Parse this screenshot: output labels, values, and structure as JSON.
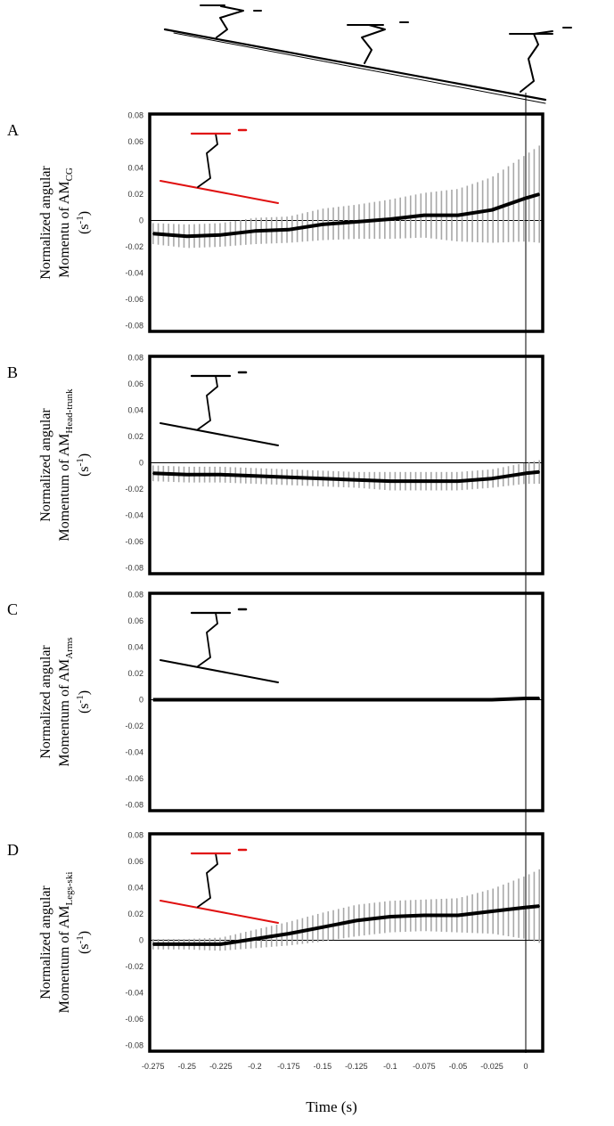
{
  "chart_data": {
    "type": "line",
    "xlabel": "Time (s)",
    "x_tick_labels": [
      "-0.275",
      "-0.25",
      "-0.225",
      "-0.2",
      "-0.175",
      "-0.15",
      "-0.125",
      "-0.1",
      "-0.075",
      "-0.05",
      "-0.025",
      "0"
    ],
    "y_tick_labels": [
      "0.08",
      "0.06",
      "0.04",
      "0.02",
      "0",
      "-0.02",
      "-0.04",
      "-0.06",
      "-0.08"
    ],
    "xlim": [
      -0.2775,
      0.0125
    ],
    "ylim": [
      -0.08,
      0.08
    ],
    "panels": [
      {
        "letter": "A",
        "ylabel": {
          "line1": "Normalized angular",
          "line2_prefix": "Momentu of AM",
          "subscript": "CG",
          "unit_base": "(s",
          "unit_exp": "-1",
          "unit_close": ")"
        },
        "inset_color": "#e01010",
        "x": [
          -0.275,
          -0.25,
          -0.225,
          -0.2,
          -0.175,
          -0.15,
          -0.125,
          -0.1,
          -0.075,
          -0.05,
          -0.025,
          0,
          0.01
        ],
        "mean": [
          -0.01,
          -0.012,
          -0.011,
          -0.008,
          -0.007,
          -0.003,
          -0.001,
          0.001,
          0.004,
          0.004,
          0.008,
          0.017,
          0.02
        ],
        "sd": [
          0.008,
          0.009,
          0.009,
          0.01,
          0.01,
          0.012,
          0.013,
          0.015,
          0.017,
          0.02,
          0.025,
          0.033,
          0.037
        ]
      },
      {
        "letter": "B",
        "ylabel": {
          "line1": "Normalized angular",
          "line2_prefix": "Momentum of AM",
          "subscript": "Head-trunk",
          "unit_base": "(s",
          "unit_exp": "-1",
          "unit_close": ")"
        },
        "inset_color": "#000000",
        "x": [
          -0.275,
          -0.25,
          -0.225,
          -0.2,
          -0.175,
          -0.15,
          -0.125,
          -0.1,
          -0.075,
          -0.05,
          -0.025,
          0,
          0.01
        ],
        "mean": [
          -0.008,
          -0.009,
          -0.009,
          -0.01,
          -0.011,
          -0.012,
          -0.013,
          -0.014,
          -0.014,
          -0.014,
          -0.012,
          -0.008,
          -0.007
        ],
        "sd": [
          0.006,
          0.006,
          0.006,
          0.006,
          0.006,
          0.006,
          0.006,
          0.007,
          0.007,
          0.007,
          0.007,
          0.008,
          0.009
        ]
      },
      {
        "letter": "C",
        "ylabel": {
          "line1": "Normalized angular",
          "line2_prefix": "Momentum of AM",
          "subscript": "Arms",
          "unit_base": "(s",
          "unit_exp": "-1",
          "unit_close": ")"
        },
        "inset_color": "#000000",
        "x": [
          -0.275,
          -0.25,
          -0.225,
          -0.2,
          -0.175,
          -0.15,
          -0.125,
          -0.1,
          -0.075,
          -0.05,
          -0.025,
          0,
          0.01
        ],
        "mean": [
          0,
          0,
          0,
          0,
          0,
          0,
          0,
          0,
          0,
          0,
          0,
          0.001,
          0.001
        ],
        "sd": [
          0.0005,
          0.0005,
          0.0005,
          0.0005,
          0.0005,
          0.0005,
          0.0006,
          0.0006,
          0.0006,
          0.0006,
          0.0007,
          0.0007,
          0.0008
        ]
      },
      {
        "letter": "D",
        "ylabel": {
          "line1": "Normalized angular",
          "line2_prefix": "Momentum of AM",
          "subscript": "Legs-ski",
          "unit_base": "(s",
          "unit_exp": "-1",
          "unit_close": ")"
        },
        "inset_color": "#e01010",
        "x": [
          -0.275,
          -0.25,
          -0.225,
          -0.2,
          -0.175,
          -0.15,
          -0.125,
          -0.1,
          -0.075,
          -0.05,
          -0.025,
          0,
          0.01
        ],
        "mean": [
          -0.003,
          -0.003,
          -0.003,
          0.001,
          0.005,
          0.01,
          0.015,
          0.018,
          0.019,
          0.019,
          0.022,
          0.025,
          0.026
        ],
        "sd": [
          0.004,
          0.004,
          0.005,
          0.007,
          0.009,
          0.011,
          0.012,
          0.012,
          0.012,
          0.013,
          0.017,
          0.024,
          0.028
        ]
      }
    ]
  }
}
